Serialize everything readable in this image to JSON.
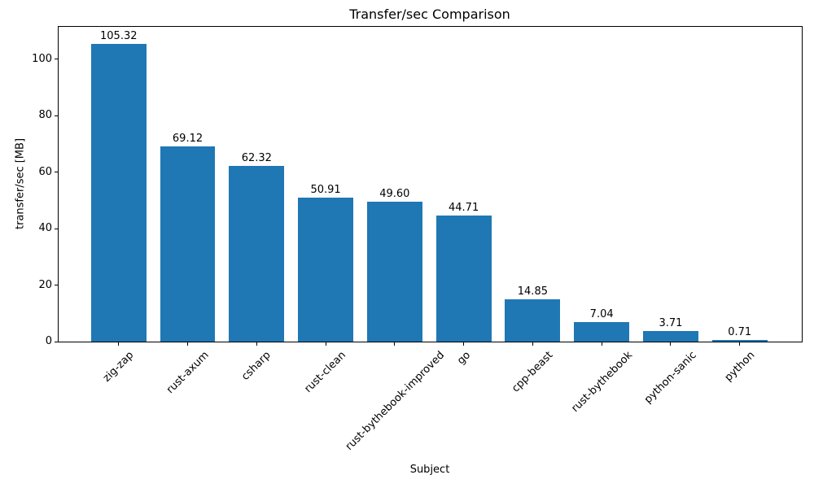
{
  "chart_data": {
    "type": "bar",
    "title": "Transfer/sec Comparison",
    "xlabel": "Subject",
    "ylabel": "transfer/sec [MB]",
    "categories": [
      "zig-zap",
      "rust-axum",
      "csharp",
      "rust-clean",
      "rust-bythebook-improved",
      "go",
      "cpp-beast",
      "rust-bythebook",
      "python-sanic",
      "python"
    ],
    "values": [
      105.32,
      69.12,
      62.32,
      50.91,
      49.6,
      44.71,
      14.85,
      7.04,
      3.71,
      0.71
    ],
    "value_labels": [
      "105.32",
      "69.12",
      "62.32",
      "50.91",
      "49.60",
      "44.71",
      "14.85",
      "7.04",
      "3.71",
      "0.71"
    ],
    "yticks": [
      0,
      20,
      40,
      60,
      80,
      100
    ],
    "ylim": [
      0,
      111.5
    ],
    "x_tick_rotation_deg": 45,
    "bar_color": "#1f77b4",
    "text_color": "#000000",
    "grid": false,
    "legend": "none"
  }
}
